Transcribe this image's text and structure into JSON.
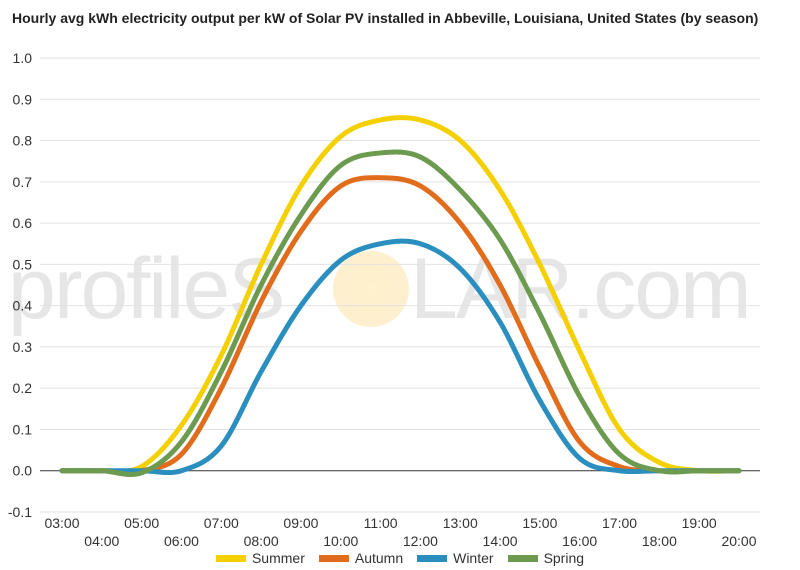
{
  "chart_data": {
    "type": "line",
    "title": "Hourly avg kWh electricity output per kW of Solar PV installed in Abbeville, Louisiana, United States (by season)",
    "watermark": "profileSOLAR.com",
    "watermark_parts": [
      "profileS",
      "LAR.com"
    ],
    "x": [
      "03:00",
      "04:00",
      "05:00",
      "06:00",
      "07:00",
      "08:00",
      "09:00",
      "10:00",
      "11:00",
      "12:00",
      "13:00",
      "14:00",
      "15:00",
      "16:00",
      "17:00",
      "18:00",
      "19:00",
      "20:00"
    ],
    "x_labels_top": [
      "03:00",
      "05:00",
      "07:00",
      "09:00",
      "11:00",
      "13:00",
      "15:00",
      "17:00",
      "19:00"
    ],
    "x_labels_bottom": [
      "04:00",
      "06:00",
      "08:00",
      "10:00",
      "12:00",
      "14:00",
      "16:00",
      "18:00",
      "20:00"
    ],
    "ylim": [
      -0.1,
      1.0
    ],
    "y_ticks": [
      "-0.1",
      "0.0",
      "0.1",
      "0.2",
      "0.3",
      "0.4",
      "0.5",
      "0.6",
      "0.7",
      "0.8",
      "0.9",
      "1.0"
    ],
    "grid": true,
    "legend_position": "bottom",
    "series": [
      {
        "name": "Summer",
        "color": "#f4d000",
        "values": [
          0,
          0,
          0.01,
          0.11,
          0.28,
          0.5,
          0.69,
          0.81,
          0.85,
          0.85,
          0.8,
          0.68,
          0.5,
          0.29,
          0.1,
          0.02,
          0,
          0
        ]
      },
      {
        "name": "Autumn",
        "color": "#e06c1c",
        "values": [
          0,
          0,
          0,
          0.04,
          0.2,
          0.41,
          0.58,
          0.69,
          0.71,
          0.69,
          0.6,
          0.45,
          0.25,
          0.07,
          0.01,
          0,
          0,
          0
        ]
      },
      {
        "name": "Winter",
        "color": "#2a8fbf",
        "values": [
          0,
          0,
          0,
          0,
          0.06,
          0.24,
          0.4,
          0.51,
          0.55,
          0.55,
          0.49,
          0.36,
          0.17,
          0.03,
          0,
          0,
          0,
          0
        ]
      },
      {
        "name": "Spring",
        "color": "#6c9b50",
        "values": [
          0,
          0,
          -0.005,
          0.07,
          0.24,
          0.45,
          0.62,
          0.74,
          0.77,
          0.76,
          0.68,
          0.56,
          0.38,
          0.18,
          0.04,
          0,
          0,
          0
        ]
      }
    ]
  }
}
